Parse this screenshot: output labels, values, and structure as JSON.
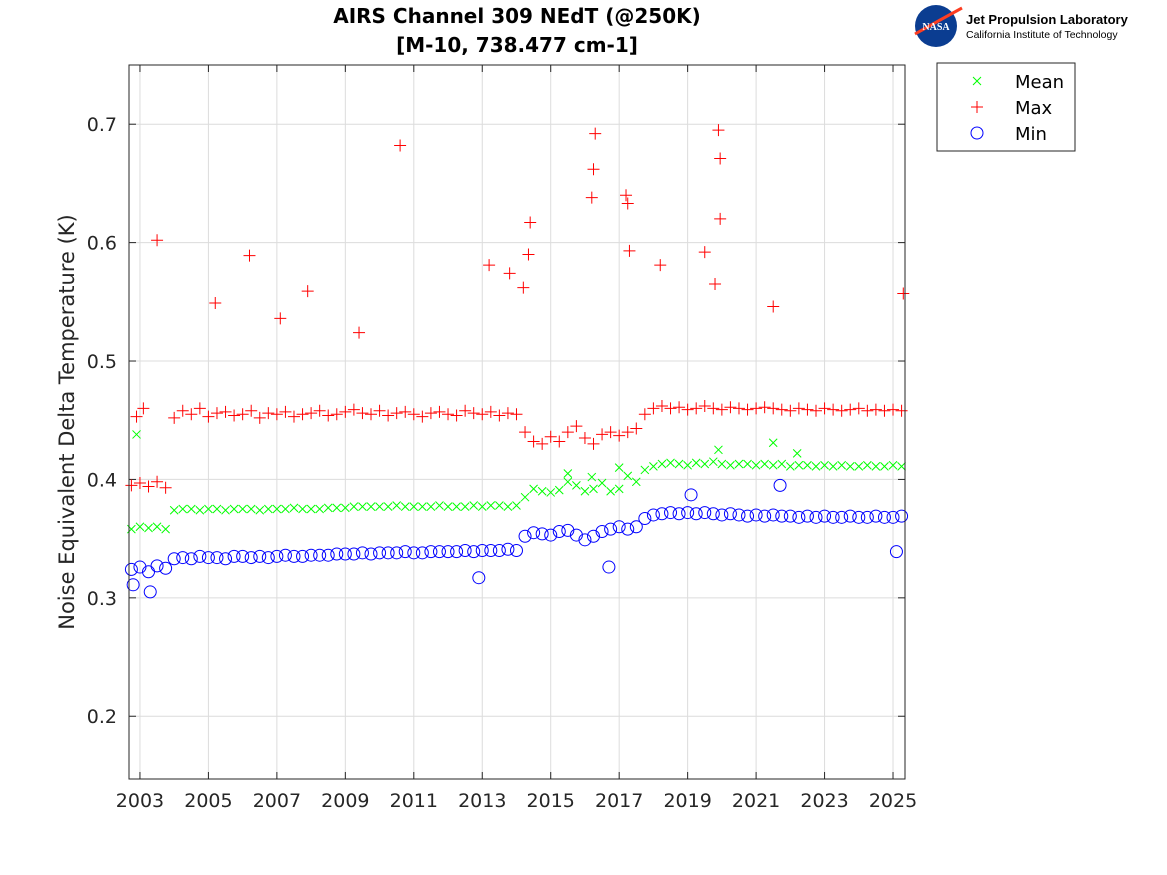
{
  "logo": {
    "line1": "Jet Propulsion Laboratory",
    "line2": "California Institute of Technology",
    "badge": "NASA"
  },
  "chart_data": {
    "type": "scatter",
    "title": [
      "AIRS Channel 309 NEdT (@250K)",
      "[M-10, 738.477 cm-1]"
    ],
    "xlabel": "",
    "ylabel": "Noise Equivalent Delta Temperature (K)",
    "xlim": [
      2002.68,
      2025.35
    ],
    "ylim": [
      0.147,
      0.75
    ],
    "xticks": [
      2003,
      2005,
      2007,
      2009,
      2011,
      2013,
      2015,
      2017,
      2019,
      2021,
      2023,
      2025
    ],
    "xtick_labels": [
      "2003",
      "2005",
      "2007",
      "2009",
      "2011",
      "2013",
      "2015",
      "2017",
      "2019",
      "2021",
      "2023",
      "2025"
    ],
    "yticks": [
      0.2,
      0.3,
      0.4,
      0.5,
      0.6,
      0.7
    ],
    "ytick_labels": [
      "0.2",
      "0.3",
      "0.4",
      "0.5",
      "0.6",
      "0.7"
    ],
    "grid": true,
    "legend_placement": "outside-top-right",
    "x": [
      2002.75,
      2003,
      2003.25,
      2003.5,
      2003.75,
      2004,
      2004.25,
      2004.5,
      2004.75,
      2005,
      2005.25,
      2005.5,
      2005.75,
      2006,
      2006.25,
      2006.5,
      2006.75,
      2007,
      2007.25,
      2007.5,
      2007.75,
      2008,
      2008.25,
      2008.5,
      2008.75,
      2009,
      2009.25,
      2009.5,
      2009.75,
      2010,
      2010.25,
      2010.5,
      2010.75,
      2011,
      2011.25,
      2011.5,
      2011.75,
      2012,
      2012.25,
      2012.5,
      2012.75,
      2013,
      2013.25,
      2013.5,
      2013.75,
      2014,
      2014.25,
      2014.5,
      2014.75,
      2015,
      2015.25,
      2015.5,
      2015.75,
      2016,
      2016.25,
      2016.5,
      2016.75,
      2017,
      2017.25,
      2017.5,
      2017.75,
      2018,
      2018.25,
      2018.5,
      2018.75,
      2019,
      2019.25,
      2019.5,
      2019.75,
      2020,
      2020.25,
      2020.5,
      2020.75,
      2021,
      2021.25,
      2021.5,
      2021.75,
      2022,
      2022.25,
      2022.5,
      2022.75,
      2023,
      2023.25,
      2023.5,
      2023.75,
      2024,
      2024.25,
      2024.5,
      2024.75,
      2025,
      2025.25
    ],
    "series": [
      {
        "name": "Mean",
        "marker": "x",
        "color": "#00ff00",
        "values": [
          0.358,
          0.36,
          0.359,
          0.36,
          0.358,
          0.374,
          0.375,
          0.375,
          0.374,
          0.375,
          0.375,
          0.374,
          0.375,
          0.375,
          0.375,
          0.374,
          0.375,
          0.375,
          0.375,
          0.376,
          0.375,
          0.375,
          0.375,
          0.376,
          0.376,
          0.376,
          0.377,
          0.377,
          0.377,
          0.377,
          0.377,
          0.378,
          0.377,
          0.377,
          0.377,
          0.377,
          0.378,
          0.377,
          0.377,
          0.377,
          0.378,
          0.377,
          0.378,
          0.378,
          0.377,
          0.378,
          0.385,
          0.392,
          0.39,
          0.389,
          0.391,
          0.398,
          0.395,
          0.39,
          0.392,
          0.397,
          0.39,
          0.392,
          0.403,
          0.398,
          0.408,
          0.411,
          0.413,
          0.414,
          0.413,
          0.412,
          0.414,
          0.413,
          0.415,
          0.413,
          0.412,
          0.413,
          0.413,
          0.412,
          0.413,
          0.412,
          0.413,
          0.411,
          0.412,
          0.412,
          0.411,
          0.412,
          0.411,
          0.412,
          0.411,
          0.411,
          0.412,
          0.411,
          0.411,
          0.412,
          0.411
        ],
        "outliers": [
          [
            2002.9,
            0.438
          ],
          [
            2021.5,
            0.431
          ],
          [
            2022.2,
            0.422
          ],
          [
            2019.9,
            0.425
          ],
          [
            2015.5,
            0.405
          ],
          [
            2016.2,
            0.402
          ],
          [
            2017,
            0.41
          ]
        ]
      },
      {
        "name": "Max",
        "marker": "+",
        "color": "#ff0000",
        "values": [
          0.395,
          0.397,
          0.394,
          0.398,
          0.393,
          0.452,
          0.458,
          0.455,
          0.46,
          0.453,
          0.456,
          0.457,
          0.454,
          0.455,
          0.458,
          0.452,
          0.456,
          0.455,
          0.457,
          0.453,
          0.455,
          0.456,
          0.458,
          0.454,
          0.455,
          0.457,
          0.459,
          0.456,
          0.455,
          0.458,
          0.454,
          0.456,
          0.457,
          0.455,
          0.453,
          0.456,
          0.457,
          0.455,
          0.454,
          0.458,
          0.456,
          0.455,
          0.457,
          0.454,
          0.456,
          0.455,
          0.44,
          0.432,
          0.43,
          0.436,
          0.432,
          0.44,
          0.445,
          0.435,
          0.43,
          0.438,
          0.44,
          0.437,
          0.44,
          0.443,
          0.455,
          0.46,
          0.462,
          0.46,
          0.461,
          0.459,
          0.46,
          0.462,
          0.46,
          0.459,
          0.461,
          0.46,
          0.459,
          0.46,
          0.461,
          0.46,
          0.459,
          0.458,
          0.46,
          0.459,
          0.458,
          0.46,
          0.459,
          0.458,
          0.459,
          0.46,
          0.458,
          0.459,
          0.458,
          0.459,
          0.458
        ],
        "outliers": [
          [
            2003.5,
            0.602
          ],
          [
            2006.2,
            0.589
          ],
          [
            2010.6,
            0.682
          ],
          [
            2005.2,
            0.549
          ],
          [
            2007.9,
            0.559
          ],
          [
            2016.3,
            0.692
          ],
          [
            2016.25,
            0.662
          ],
          [
            2016.2,
            0.638
          ],
          [
            2019.9,
            0.695
          ],
          [
            2019.95,
            0.671
          ],
          [
            2019.95,
            0.62
          ],
          [
            2025.3,
            0.557
          ],
          [
            2014.4,
            0.617
          ],
          [
            2014.35,
            0.59
          ],
          [
            2017.2,
            0.64
          ],
          [
            2017.25,
            0.633
          ],
          [
            2017.3,
            0.593
          ],
          [
            2019.5,
            0.592
          ],
          [
            2013.2,
            0.581
          ],
          [
            2013.8,
            0.574
          ],
          [
            2018.2,
            0.581
          ],
          [
            2021.5,
            0.546
          ],
          [
            2009.4,
            0.524
          ],
          [
            2007.1,
            0.536
          ],
          [
            2002.9,
            0.453
          ],
          [
            2003.1,
            0.46
          ],
          [
            2014.2,
            0.562
          ],
          [
            2019.8,
            0.565
          ]
        ]
      },
      {
        "name": "Min",
        "marker": "o",
        "color": "#0000ff",
        "values": [
          0.324,
          0.326,
          0.322,
          0.327,
          0.325,
          0.333,
          0.334,
          0.333,
          0.335,
          0.334,
          0.334,
          0.333,
          0.335,
          0.335,
          0.334,
          0.335,
          0.334,
          0.335,
          0.336,
          0.335,
          0.335,
          0.336,
          0.336,
          0.336,
          0.337,
          0.337,
          0.337,
          0.338,
          0.337,
          0.338,
          0.338,
          0.338,
          0.339,
          0.338,
          0.338,
          0.339,
          0.339,
          0.339,
          0.339,
          0.34,
          0.339,
          0.34,
          0.34,
          0.34,
          0.341,
          0.34,
          0.352,
          0.355,
          0.354,
          0.353,
          0.356,
          0.357,
          0.353,
          0.349,
          0.352,
          0.356,
          0.358,
          0.36,
          0.358,
          0.36,
          0.367,
          0.37,
          0.371,
          0.372,
          0.371,
          0.372,
          0.371,
          0.372,
          0.371,
          0.37,
          0.371,
          0.37,
          0.369,
          0.37,
          0.369,
          0.37,
          0.369,
          0.369,
          0.368,
          0.369,
          0.368,
          0.369,
          0.368,
          0.368,
          0.369,
          0.368,
          0.368,
          0.369,
          0.368,
          0.368,
          0.369
        ],
        "outliers": [
          [
            2021.7,
            0.395
          ],
          [
            2003.3,
            0.305
          ],
          [
            2016.7,
            0.326
          ],
          [
            2025.1,
            0.339
          ],
          [
            2012.9,
            0.317
          ],
          [
            2002.8,
            0.311
          ],
          [
            2019.1,
            0.387
          ]
        ]
      }
    ]
  }
}
